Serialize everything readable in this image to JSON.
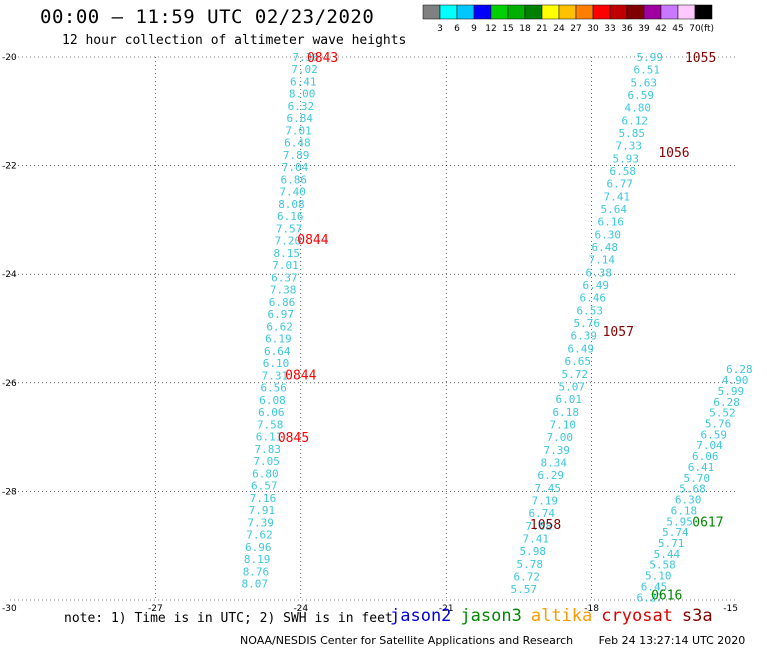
{
  "header": {
    "title": "00:00 – 11:59 UTC 02/23/2020",
    "subtitle": "12 hour collection of altimeter wave heights"
  },
  "legend": {
    "colors": [
      "#808080",
      "#00ffff",
      "#00c8ff",
      "#0000ff",
      "#00d000",
      "#00b000",
      "#008000",
      "#ffff00",
      "#ffc000",
      "#ff8000",
      "#ff0000",
      "#c00000",
      "#800000",
      "#a000a0",
      "#c878ff",
      "#ffc8ff",
      "#000000"
    ],
    "labels": [
      "3",
      "6",
      "9",
      "12",
      "15",
      "18",
      "21",
      "24",
      "27",
      "30",
      "33",
      "36",
      "39",
      "42",
      "45",
      "70"
    ],
    "unit": "(ft)"
  },
  "footer": {
    "note": "note: 1) Time is in UTC; 2) SWH is in feet",
    "satellites": [
      {
        "name": "jason2",
        "color": "#0000dd"
      },
      {
        "name": "jason3",
        "color": "#008800"
      },
      {
        "name": "altika",
        "color": "#ff9900"
      },
      {
        "name": "cryosat",
        "color": "#dd0000"
      },
      {
        "name": "s3a",
        "color": "#880000"
      }
    ],
    "credit": "NOAA/NESDIS Center for Satellite Applications and Research",
    "timestamp": "Feb 24 13:27:14 UTC 2020"
  },
  "chart_data": {
    "type": "scatter",
    "title": "00:00 – 11:59 UTC 02/23/2020",
    "subtitle": "12 hour collection of altimeter wave heights",
    "xlim": [
      -30,
      -15
    ],
    "ylim": [
      -30,
      -20
    ],
    "x_ticks": [
      "-30",
      "-27",
      "-24",
      "-21",
      "-18",
      "-15"
    ],
    "y_ticks": [
      "-20",
      "-22",
      "-24",
      "-26",
      "-28",
      "-30"
    ],
    "grid": true,
    "value_color": "#3cc8dc",
    "tracks": [
      {
        "name": "track-1",
        "start": [
          -23.9,
          -20.0
        ],
        "end": [
          -24.95,
          -29.7
        ],
        "values": [
          "7.36",
          "7.02",
          "6.41",
          "8.00",
          "6.32",
          "6.84",
          "7.01",
          "6.48",
          "7.89",
          "7.04",
          "6.86",
          "7.40",
          "8.08",
          "6.16",
          "7.57",
          "7.20",
          "8.15",
          "7.01",
          "6.37",
          "7.38",
          "6.86",
          "6.97",
          "6.62",
          "6.19",
          "6.64",
          "6.10",
          "7.31",
          "6.56",
          "6.08",
          "6.06",
          "7.58",
          "6.11",
          "7.83",
          "7.05",
          "6.80",
          "6.57",
          "7.16",
          "7.91",
          "7.39",
          "7.62",
          "6.96",
          "8.19",
          "8.76",
          "8.07"
        ],
        "time_labels": [
          {
            "text": "0843",
            "at": [
              -23.55,
              -20.0
            ],
            "color": "#ff0000"
          },
          {
            "text": "0844",
            "at": [
              -23.75,
              -23.35
            ],
            "color": "#ff0000"
          },
          {
            "text": "0844",
            "at": [
              -24.0,
              -25.85
            ],
            "color": "#ff0000"
          },
          {
            "text": "0845",
            "at": [
              -24.15,
              -27.0
            ],
            "color": "#ff0000"
          }
        ]
      },
      {
        "name": "track-2",
        "start": [
          -16.8,
          -20.0
        ],
        "end": [
          -19.4,
          -29.8
        ],
        "values": [
          "5.99",
          "6.51",
          "5.63",
          "6.59",
          "4.80",
          "6.12",
          "5.85",
          "7.33",
          "5.93",
          "6.58",
          "6.77",
          "7.41",
          "5.64",
          "6.16",
          "6.30",
          "6.48",
          "7.14",
          "6.38",
          "6.49",
          "6.46",
          "6.53",
          "5.76",
          "6.39",
          "6.49",
          "6.65",
          "5.72",
          "5.07",
          "6.01",
          "6.18",
          "7.10",
          "7.00",
          "7.39",
          "8.34",
          "6.29",
          "7.45",
          "7.19",
          "6.74",
          "7.08",
          "7.41",
          "5.98",
          "5.78",
          "6.72",
          "5.57"
        ],
        "time_labels": [
          {
            "text": "1055",
            "at": [
              -15.75,
              -20.0
            ],
            "color": "#880000"
          },
          {
            "text": "1056",
            "at": [
              -16.3,
              -21.75
            ],
            "color": "#880000"
          },
          {
            "text": "1057",
            "at": [
              -17.45,
              -25.05
            ],
            "color": "#880000"
          },
          {
            "text": "1058",
            "at": [
              -18.95,
              -28.6
            ],
            "color": "#880000"
          }
        ]
      },
      {
        "name": "track-3",
        "start": [
          -14.95,
          -25.75
        ],
        "end": [
          -16.8,
          -29.95
        ],
        "values": [
          "6.28",
          "4.90",
          "5.99",
          "6.28",
          "5.52",
          "5.76",
          "6.59",
          "7.04",
          "6.06",
          "6.41",
          "5.70",
          "5.68",
          "6.30",
          "6.18",
          "5.95",
          "5.74",
          "5.71",
          "5.44",
          "5.58",
          "5.10",
          "6.45",
          "6.27"
        ],
        "time_labels": [
          {
            "text": "0617",
            "at": [
              -15.6,
              -28.55
            ],
            "color": "#008800"
          },
          {
            "text": "0616",
            "at": [
              -16.45,
              -29.9
            ],
            "color": "#008800"
          }
        ]
      }
    ]
  }
}
